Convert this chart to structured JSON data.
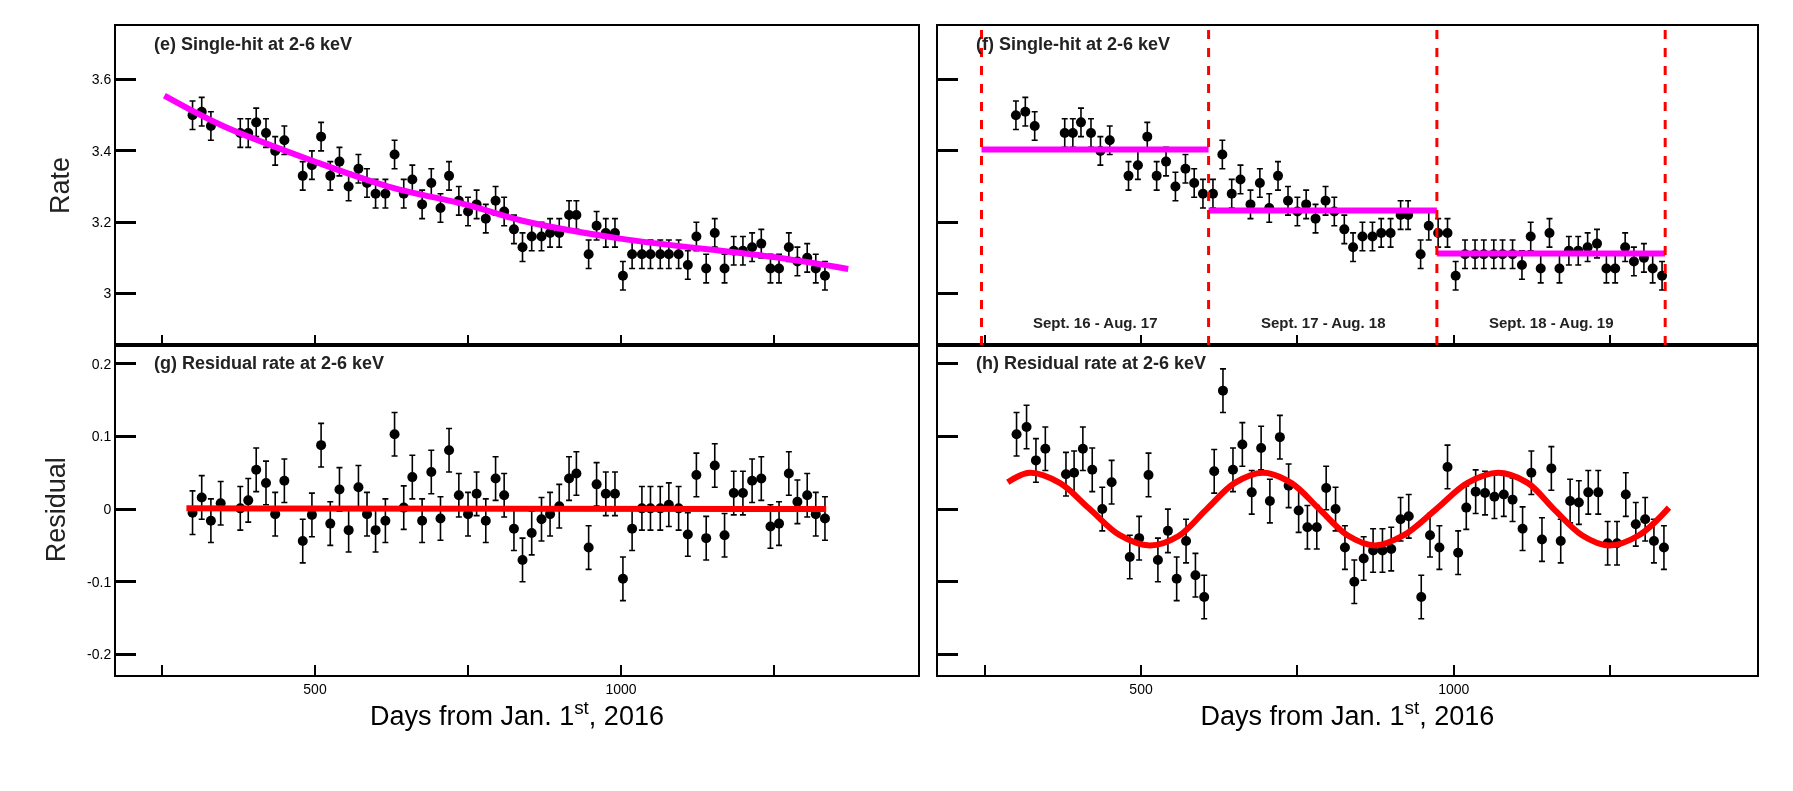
{
  "chart_data": [
    {
      "type": "scatter",
      "title": "(e) Single-hit at 2-6 keV",
      "ylabel": "Rate",
      "marker": "circle",
      "tick_labels": "y",
      "xlim": [
        175,
        1485
      ],
      "xticks": [
        {
          "value": 250,
          "label": null
        },
        {
          "value": 500,
          "label": null
        },
        {
          "value": 750,
          "label": null
        },
        {
          "value": 1000,
          "label": null
        },
        {
          "value": 1250,
          "label": null
        }
      ],
      "ylim": [
        2.856,
        3.75
      ],
      "yticks": [
        3,
        3.2,
        3.4,
        3.6
      ],
      "series": [
        {
          "color": "#000000",
          "x": [
            300,
            315,
            330,
            378,
            391,
            404,
            420,
            435,
            450,
            480,
            495,
            510,
            525,
            540,
            555,
            571,
            585,
            599,
            615,
            630,
            645,
            659,
            675,
            690,
            705,
            719,
            735,
            750,
            764,
            779,
            795,
            809,
            825,
            839,
            854,
            870,
            884,
            899,
            915,
            927,
            947,
            960,
            975,
            990,
            1003,
            1018,
            1034,
            1048,
            1064,
            1078,
            1094,
            1109,
            1123,
            1139,
            1153,
            1169,
            1184,
            1199,
            1214,
            1229,
            1244,
            1258,
            1274,
            1288,
            1304,
            1318,
            1333
          ],
          "values": [
            3.5,
            3.51,
            3.47,
            3.45,
            3.45,
            3.48,
            3.45,
            3.4,
            3.43,
            3.33,
            3.36,
            3.44,
            3.33,
            3.37,
            3.3,
            3.35,
            3.31,
            3.28,
            3.28,
            3.39,
            3.28,
            3.32,
            3.25,
            3.31,
            3.24,
            3.33,
            3.26,
            3.23,
            3.25,
            3.21,
            3.26,
            3.23,
            3.18,
            3.13,
            3.16,
            3.16,
            3.17,
            3.17,
            3.22,
            3.22,
            3.11,
            3.19,
            3.17,
            3.17,
            3.05,
            3.11,
            3.11,
            3.11,
            3.11,
            3.11,
            3.11,
            3.08,
            3.16,
            3.07,
            3.17,
            3.07,
            3.12,
            3.12,
            3.13,
            3.14,
            3.07,
            3.07,
            3.13,
            3.09,
            3.1,
            3.07,
            3.05
          ],
          "errors": [
            0.04,
            0.04,
            0.04,
            0.04,
            0.04,
            0.04,
            0.04,
            0.04,
            0.04,
            0.04,
            0.04,
            0.04,
            0.04,
            0.04,
            0.04,
            0.04,
            0.04,
            0.04,
            0.04,
            0.04,
            0.04,
            0.04,
            0.04,
            0.04,
            0.04,
            0.04,
            0.04,
            0.04,
            0.04,
            0.04,
            0.04,
            0.04,
            0.04,
            0.04,
            0.04,
            0.04,
            0.04,
            0.04,
            0.04,
            0.04,
            0.04,
            0.04,
            0.04,
            0.04,
            0.04,
            0.04,
            0.04,
            0.04,
            0.04,
            0.04,
            0.04,
            0.04,
            0.04,
            0.04,
            0.04,
            0.04,
            0.04,
            0.04,
            0.04,
            0.04,
            0.04,
            0.04,
            0.04,
            0.04,
            0.04,
            0.04,
            0.04
          ]
        },
        {
          "type": "line",
          "marker": "none",
          "color": "#ff00ff",
          "x": [
            254,
            350,
            498,
            620,
            750,
            839,
            999,
            1246,
            1371
          ],
          "values": [
            3.555,
            3.47,
            3.371,
            3.3,
            3.248,
            3.204,
            3.154,
            3.103,
            3.069
          ]
        }
      ]
    },
    {
      "type": "scatter",
      "title": "(f) Single-hit at 2-6 keV",
      "marker": "circle",
      "tick_labels": false,
      "xlim": [
        175,
        1485
      ],
      "xticks": [
        {
          "value": 250,
          "label": null
        },
        {
          "value": 500,
          "label": null
        },
        {
          "value": 750,
          "label": null
        },
        {
          "value": 1000,
          "label": null
        },
        {
          "value": 1250,
          "label": null
        }
      ],
      "ylim": [
        2.856,
        3.75
      ],
      "yticks": [
        {
          "value": 3,
          "label": null
        },
        {
          "value": 3.2,
          "label": null
        },
        {
          "value": 3.4,
          "label": null
        },
        {
          "value": 3.6,
          "label": null
        }
      ],
      "ref_lines": [
        {
          "axis": "x",
          "value": 245,
          "color": "#ff0000",
          "line_style": "dashed"
        },
        {
          "axis": "x",
          "value": 608,
          "color": "#ff0000",
          "line_style": "dashed"
        },
        {
          "axis": "x",
          "value": 973,
          "color": "#ff0000",
          "line_style": "dashed"
        },
        {
          "axis": "x",
          "value": 1338,
          "color": "#ff0000",
          "line_style": "dashed"
        }
      ],
      "annotations": [
        "Sept. 16 - Aug. 17",
        "Sept. 17 - Aug. 18",
        "Sept. 18 - Aug. 19"
      ],
      "series": [
        {
          "color": "#000000",
          "x": [
            300,
            315,
            330,
            378,
            391,
            404,
            420,
            435,
            450,
            480,
            495,
            510,
            525,
            540,
            555,
            571,
            585,
            599,
            615,
            630,
            645,
            659,
            675,
            690,
            705,
            719,
            735,
            750,
            764,
            779,
            795,
            809,
            825,
            839,
            854,
            870,
            884,
            899,
            915,
            927,
            947,
            960,
            975,
            990,
            1003,
            1018,
            1034,
            1048,
            1064,
            1078,
            1094,
            1109,
            1123,
            1139,
            1153,
            1169,
            1184,
            1199,
            1214,
            1229,
            1244,
            1258,
            1274,
            1288,
            1304,
            1318,
            1333
          ],
          "values": [
            3.5,
            3.51,
            3.47,
            3.45,
            3.45,
            3.48,
            3.45,
            3.4,
            3.43,
            3.33,
            3.36,
            3.44,
            3.33,
            3.37,
            3.3,
            3.35,
            3.31,
            3.28,
            3.28,
            3.39,
            3.28,
            3.32,
            3.25,
            3.31,
            3.24,
            3.33,
            3.26,
            3.23,
            3.25,
            3.21,
            3.26,
            3.23,
            3.18,
            3.13,
            3.16,
            3.16,
            3.17,
            3.17,
            3.22,
            3.22,
            3.11,
            3.19,
            3.17,
            3.17,
            3.05,
            3.11,
            3.11,
            3.11,
            3.11,
            3.11,
            3.11,
            3.08,
            3.16,
            3.07,
            3.17,
            3.07,
            3.12,
            3.12,
            3.13,
            3.14,
            3.07,
            3.07,
            3.13,
            3.09,
            3.1,
            3.07,
            3.05
          ],
          "errors": [
            0.04,
            0.04,
            0.04,
            0.04,
            0.04,
            0.04,
            0.04,
            0.04,
            0.04,
            0.04,
            0.04,
            0.04,
            0.04,
            0.04,
            0.04,
            0.04,
            0.04,
            0.04,
            0.04,
            0.04,
            0.04,
            0.04,
            0.04,
            0.04,
            0.04,
            0.04,
            0.04,
            0.04,
            0.04,
            0.04,
            0.04,
            0.04,
            0.04,
            0.04,
            0.04,
            0.04,
            0.04,
            0.04,
            0.04,
            0.04,
            0.04,
            0.04,
            0.04,
            0.04,
            0.04,
            0.04,
            0.04,
            0.04,
            0.04,
            0.04,
            0.04,
            0.04,
            0.04,
            0.04,
            0.04,
            0.04,
            0.04,
            0.04,
            0.04,
            0.04,
            0.04,
            0.04,
            0.04,
            0.04,
            0.04,
            0.04,
            0.04
          ]
        },
        {
          "type": "line",
          "marker": "none",
          "color": "#ff00ff",
          "x": [
            245,
            608
          ],
          "values": [
            3.404,
            3.404
          ]
        },
        {
          "type": "line",
          "marker": "none",
          "color": "#ff00ff",
          "x": [
            608,
            973
          ],
          "values": [
            3.233,
            3.233
          ]
        },
        {
          "type": "line",
          "marker": "none",
          "color": "#ff00ff",
          "x": [
            973,
            1338
          ],
          "values": [
            3.112,
            3.112
          ]
        }
      ]
    },
    {
      "type": "scatter",
      "title": "(g) Residual rate at 2-6 keV",
      "ylabel": "Residual",
      "xlabel": "Days from Jan. 1$^{st}$, 2016",
      "marker": "circle",
      "xlim": [
        175,
        1485
      ],
      "xticks": [
        {
          "value": 250,
          "label": null
        },
        500,
        {
          "value": 750,
          "label": null
        },
        1000,
        {
          "value": 1250,
          "label": null
        }
      ],
      "ylim": [
        -0.228,
        0.226
      ],
      "yticks": [
        -0.2,
        -0.1,
        0,
        0.1,
        0.2
      ],
      "series": [
        {
          "color": "#000000",
          "x": [
            300,
            315,
            330,
            346,
            378,
            391,
            404,
            420,
            435,
            450,
            480,
            495,
            510,
            525,
            540,
            555,
            571,
            585,
            599,
            615,
            630,
            645,
            659,
            675,
            690,
            705,
            719,
            735,
            750,
            764,
            779,
            795,
            809,
            825,
            839,
            854,
            870,
            884,
            899,
            915,
            927,
            947,
            960,
            975,
            990,
            1003,
            1018,
            1034,
            1048,
            1064,
            1078,
            1094,
            1109,
            1123,
            1139,
            1153,
            1169,
            1184,
            1199,
            1214,
            1229,
            1244,
            1258,
            1274,
            1288,
            1304,
            1318,
            1333
          ],
          "values": [
            -0.005,
            0.016,
            -0.016,
            0.008,
            0.001,
            0.012,
            0.054,
            0.036,
            -0.007,
            0.039,
            -0.044,
            -0.008,
            0.088,
            -0.02,
            0.027,
            -0.029,
            0.03,
            -0.007,
            -0.029,
            -0.016,
            0.103,
            0.002,
            0.044,
            -0.016,
            0.051,
            -0.013,
            0.081,
            0.019,
            -0.007,
            0.021,
            -0.016,
            0.042,
            0.019,
            -0.027,
            -0.07,
            -0.033,
            -0.014,
            -0.007,
            0.004,
            0.042,
            0.049,
            -0.053,
            0.034,
            0.021,
            0.021,
            -0.096,
            -0.027,
            0.001,
            0.001,
            0.001,
            0.006,
            0.001,
            -0.035,
            0.047,
            -0.04,
            0.06,
            -0.036,
            0.022,
            0.022,
            0.039,
            0.042,
            -0.024,
            -0.02,
            0.049,
            0.01,
            0.019,
            -0.007,
            -0.013
          ],
          "errors": [
            0.03,
            0.03,
            0.03,
            0.03,
            0.03,
            0.03,
            0.03,
            0.03,
            0.03,
            0.03,
            0.03,
            0.03,
            0.03,
            0.03,
            0.03,
            0.03,
            0.03,
            0.03,
            0.03,
            0.03,
            0.03,
            0.03,
            0.03,
            0.03,
            0.03,
            0.03,
            0.03,
            0.03,
            0.03,
            0.03,
            0.03,
            0.03,
            0.03,
            0.03,
            0.03,
            0.03,
            0.03,
            0.03,
            0.03,
            0.03,
            0.03,
            0.03,
            0.03,
            0.03,
            0.03,
            0.03,
            0.03,
            0.03,
            0.03,
            0.03,
            0.03,
            0.03,
            0.03,
            0.03,
            0.03,
            0.03,
            0.03,
            0.03,
            0.03,
            0.03,
            0.03,
            0.03,
            0.03,
            0.03,
            0.03,
            0.03,
            0.03,
            0.03
          ]
        },
        {
          "type": "line",
          "marker": "none",
          "color": "#ff0000",
          "x": [
            290,
            1335
          ],
          "values": [
            0.001,
            0.0
          ]
        }
      ]
    },
    {
      "type": "scatter",
      "title": "(h) Residual rate at 2-6 keV",
      "xlabel": "Days from Jan. 1$^{st}$, 2016",
      "marker": "circle",
      "tick_labels": "x",
      "xlim": [
        175,
        1485
      ],
      "xticks": [
        {
          "value": 250,
          "label": null
        },
        500,
        {
          "value": 750,
          "label": null
        },
        1000,
        {
          "value": 1250,
          "label": null
        }
      ],
      "ylim": [
        -0.228,
        0.226
      ],
      "yticks": [
        {
          "value": -0.2,
          "label": null
        },
        {
          "value": -0.1,
          "label": null
        },
        {
          "value": 0,
          "label": null
        },
        {
          "value": 0.1,
          "label": null
        },
        {
          "value": 0.2,
          "label": null
        }
      ],
      "series": [
        {
          "color": "#000000",
          "x": [
            301,
            317,
            332,
            347,
            380,
            393,
            407,
            422,
            438,
            453,
            482,
            497,
            512,
            527,
            543,
            557,
            572,
            587,
            601,
            617,
            631,
            647,
            662,
            677,
            692,
            706,
            722,
            736,
            752,
            766,
            781,
            796,
            811,
            826,
            841,
            856,
            871,
            886,
            900,
            915,
            928,
            948,
            962,
            977,
            990,
            1007,
            1020,
            1035,
            1050,
            1065,
            1080,
            1094,
            1110,
            1124,
            1141,
            1156,
            1171,
            1186,
            1200,
            1215,
            1231,
            1246,
            1261,
            1275,
            1291,
            1306,
            1320,
            1336
          ],
          "values": [
            0.103,
            0.113,
            0.067,
            0.083,
            0.048,
            0.05,
            0.083,
            0.054,
            0.0,
            0.037,
            -0.066,
            -0.04,
            0.047,
            -0.07,
            -0.03,
            -0.096,
            -0.044,
            -0.091,
            -0.121,
            0.052,
            0.163,
            0.054,
            0.089,
            0.023,
            0.084,
            0.011,
            0.099,
            0.032,
            -0.002,
            -0.025,
            -0.025,
            0.029,
            0.0,
            -0.053,
            -0.1,
            -0.068,
            -0.057,
            -0.057,
            -0.055,
            -0.014,
            -0.01,
            -0.121,
            -0.036,
            -0.053,
            0.058,
            -0.06,
            0.002,
            0.024,
            0.022,
            0.017,
            0.02,
            0.013,
            -0.027,
            0.05,
            -0.042,
            0.056,
            -0.044,
            0.011,
            0.009,
            0.023,
            0.023,
            -0.047,
            -0.047,
            0.02,
            -0.021,
            -0.014,
            -0.044,
            -0.053
          ],
          "errors": [
            0.03,
            0.03,
            0.03,
            0.03,
            0.03,
            0.03,
            0.03,
            0.03,
            0.03,
            0.03,
            0.03,
            0.03,
            0.03,
            0.03,
            0.03,
            0.03,
            0.03,
            0.03,
            0.03,
            0.03,
            0.03,
            0.03,
            0.03,
            0.03,
            0.03,
            0.03,
            0.03,
            0.03,
            0.03,
            0.03,
            0.03,
            0.03,
            0.03,
            0.03,
            0.03,
            0.03,
            0.03,
            0.03,
            0.03,
            0.03,
            0.03,
            0.03,
            0.03,
            0.03,
            0.03,
            0.03,
            0.03,
            0.03,
            0.03,
            0.03,
            0.03,
            0.03,
            0.03,
            0.03,
            0.03,
            0.03,
            0.03,
            0.03,
            0.03,
            0.03,
            0.03,
            0.03,
            0.03,
            0.03,
            0.03,
            0.03,
            0.03,
            0.03
          ]
        },
        {
          "type": "line",
          "marker": "none",
          "color": "#ff0000",
          "x": [
            287,
            322,
            370,
            418,
            466,
            514,
            560,
            605,
            650,
            695,
            740,
            785,
            830,
            874,
            920,
            972,
            1022,
            1071,
            1118,
            1160,
            1205,
            1248,
            1296,
            1344
          ],
          "values": [
            0.037,
            0.05,
            0.036,
            0.0,
            -0.036,
            -0.05,
            -0.037,
            0.0,
            0.036,
            0.05,
            0.036,
            0.0,
            -0.036,
            -0.05,
            -0.036,
            0.0,
            0.036,
            0.05,
            0.036,
            0.0,
            -0.036,
            -0.05,
            -0.036,
            0.002
          ]
        }
      ]
    }
  ]
}
